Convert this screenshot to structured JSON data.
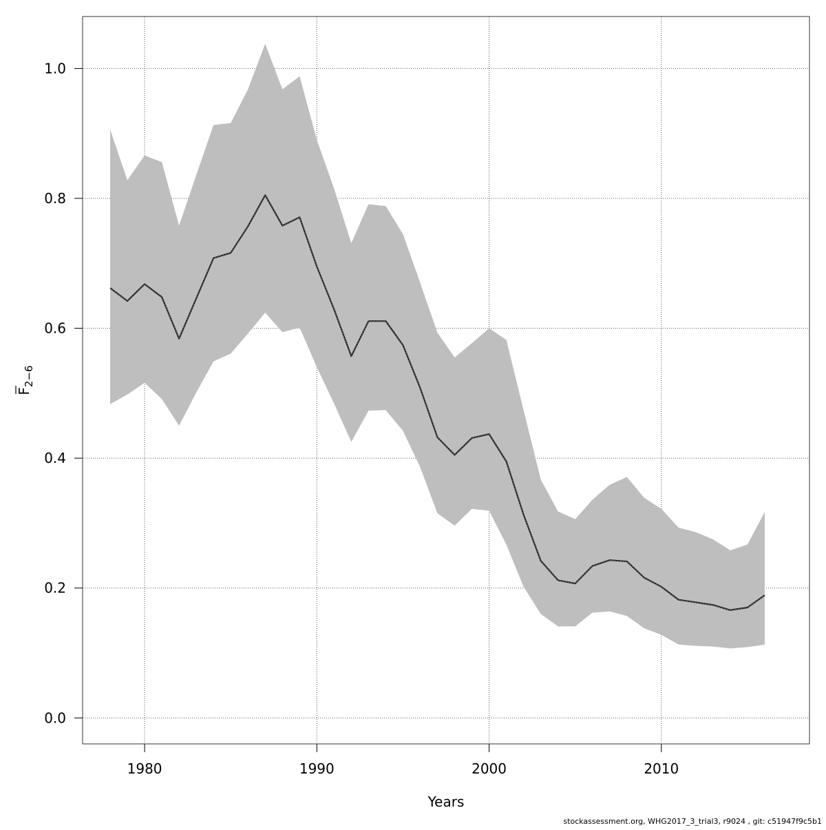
{
  "chart_data": {
    "type": "line",
    "title": "",
    "xlabel": "Years",
    "ylabel": {
      "main": "F",
      "subscript": "2−6",
      "overline": true
    },
    "xlim": [
      1976.4,
      2018.6
    ],
    "ylim": [
      -0.04,
      1.08
    ],
    "x_ticks": [
      1980,
      1990,
      2000,
      2010
    ],
    "y_ticks": [
      0.0,
      0.2,
      0.4,
      0.6,
      0.8,
      1.0
    ],
    "y_tick_labels": [
      "0.0",
      "0.2",
      "0.4",
      "0.6",
      "0.8",
      "1.0"
    ],
    "grid": true,
    "x": [
      1978,
      1979,
      1980,
      1981,
      1982,
      1983,
      1984,
      1985,
      1986,
      1987,
      1988,
      1989,
      1990,
      1991,
      1992,
      1993,
      1994,
      1995,
      1996,
      1997,
      1998,
      1999,
      2000,
      2001,
      2002,
      2003,
      2004,
      2005,
      2006,
      2007,
      2008,
      2009,
      2010,
      2011,
      2012,
      2013,
      2014,
      2015,
      2016
    ],
    "series": [
      {
        "values": [
          0.662,
          0.642,
          0.668,
          0.648,
          0.584,
          0.646,
          0.708,
          0.716,
          0.757,
          0.805,
          0.758,
          0.771,
          0.695,
          0.629,
          0.557,
          0.611,
          0.611,
          0.574,
          0.508,
          0.432,
          0.405,
          0.431,
          0.437,
          0.395,
          0.313,
          0.242,
          0.212,
          0.207,
          0.234,
          0.243,
          0.241,
          0.216,
          0.202,
          0.182,
          0.178,
          0.174,
          0.166,
          0.17,
          0.189
        ],
        "lower": [
          0.483,
          0.498,
          0.516,
          0.491,
          0.45,
          0.501,
          0.549,
          0.561,
          0.592,
          0.624,
          0.594,
          0.601,
          0.54,
          0.484,
          0.425,
          0.473,
          0.474,
          0.442,
          0.386,
          0.315,
          0.296,
          0.322,
          0.319,
          0.267,
          0.202,
          0.16,
          0.141,
          0.141,
          0.162,
          0.164,
          0.157,
          0.138,
          0.128,
          0.113,
          0.111,
          0.11,
          0.107,
          0.109,
          0.113
        ],
        "upper": [
          0.906,
          0.828,
          0.866,
          0.856,
          0.758,
          0.836,
          0.913,
          0.916,
          0.968,
          1.038,
          0.968,
          0.988,
          0.89,
          0.815,
          0.731,
          0.791,
          0.788,
          0.745,
          0.67,
          0.593,
          0.555,
          0.577,
          0.6,
          0.582,
          0.474,
          0.367,
          0.318,
          0.306,
          0.336,
          0.359,
          0.371,
          0.339,
          0.322,
          0.293,
          0.286,
          0.275,
          0.258,
          0.267,
          0.317
        ]
      }
    ],
    "colors": {
      "band": "#bebebe",
      "line": "#222222",
      "grid": "#555555",
      "axis": "#333333"
    }
  },
  "footer": {
    "text": "stockassessment.org, WHG2017_3_trial3, r9024 , git: c51947f9c5b1"
  }
}
